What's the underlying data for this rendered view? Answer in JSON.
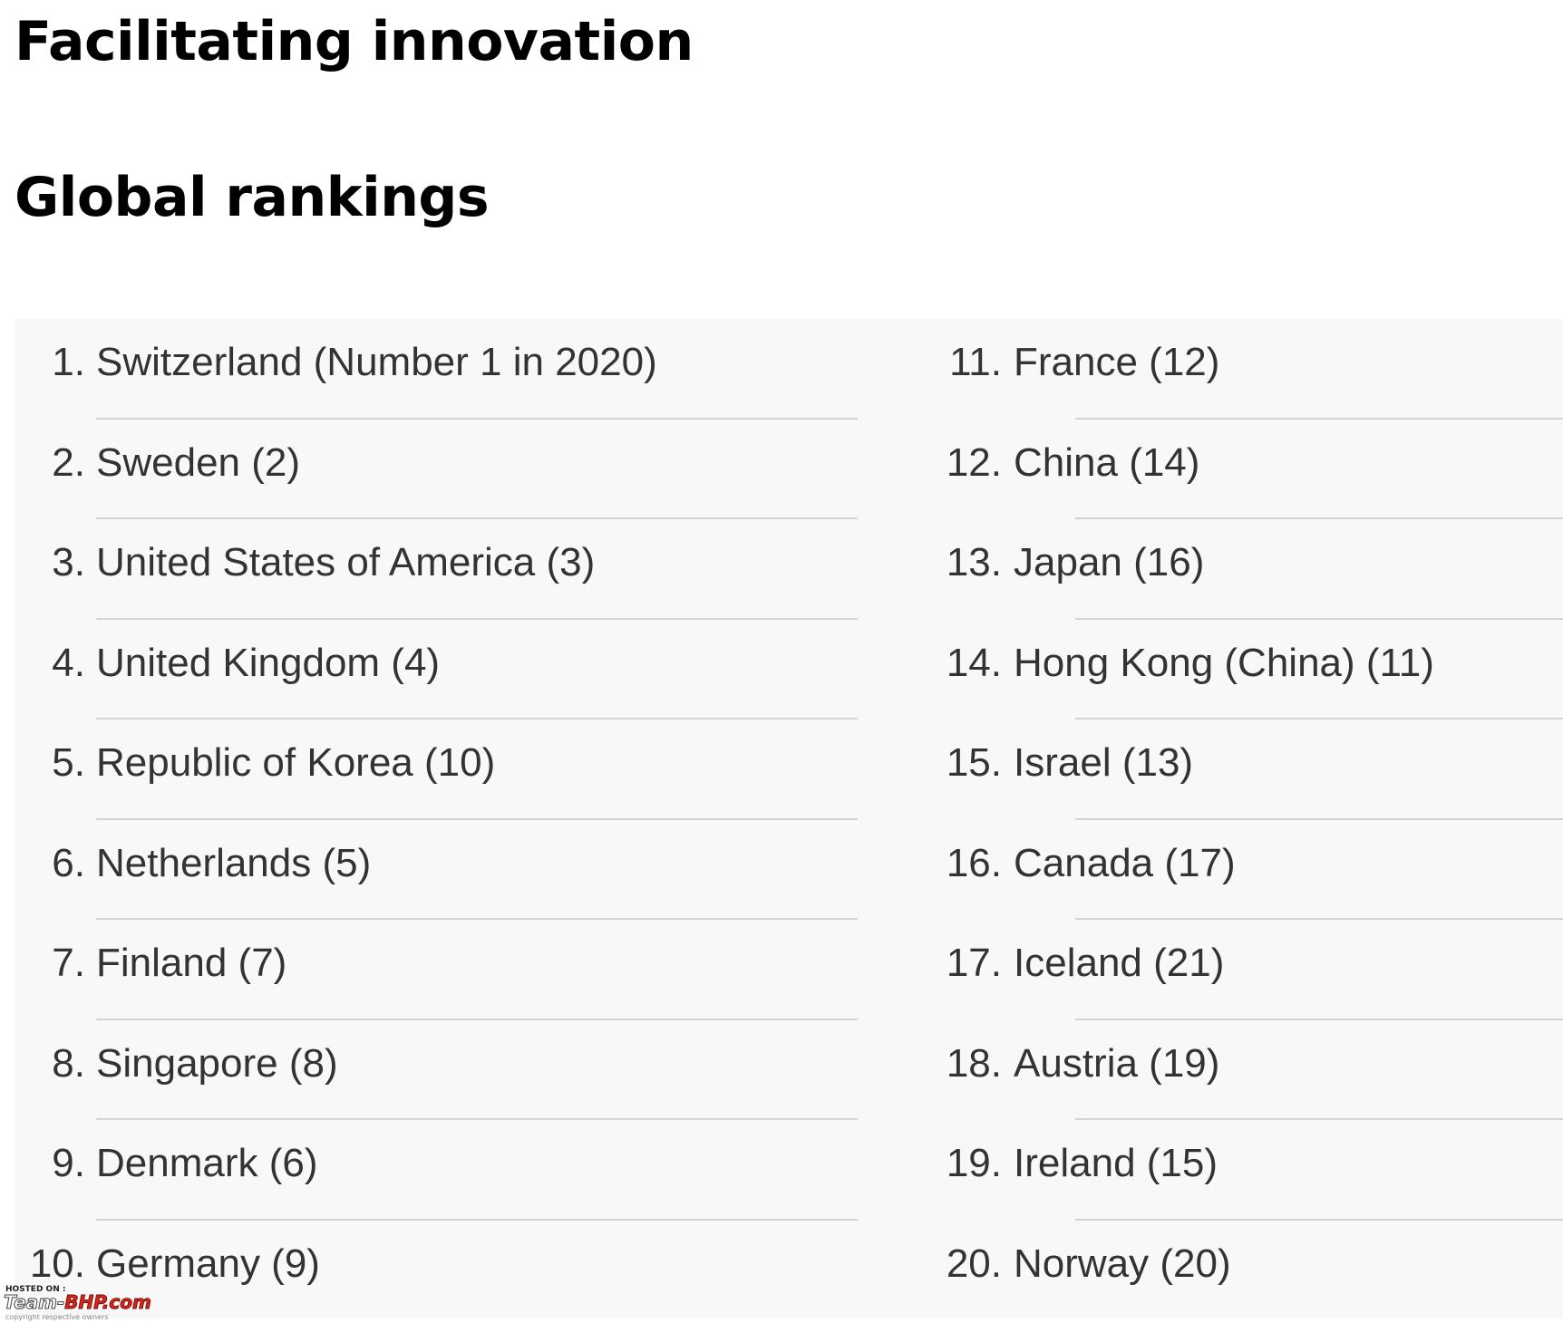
{
  "page": {
    "title": "Facilitating innovation",
    "subtitle": "Global rankings"
  },
  "rankings": {
    "left": [
      {
        "num": "1.",
        "text": "Switzerland (Number 1 in 2020)"
      },
      {
        "num": "2.",
        "text": "Sweden (2)"
      },
      {
        "num": "3.",
        "text": "United States of America (3)"
      },
      {
        "num": "4.",
        "text": "United Kingdom (4)"
      },
      {
        "num": "5.",
        "text": "Republic of Korea (10)"
      },
      {
        "num": "6.",
        "text": "Netherlands (5)"
      },
      {
        "num": "7.",
        "text": "Finland (7)"
      },
      {
        "num": "8.",
        "text": "Singapore (8)"
      },
      {
        "num": "9.",
        "text": "Denmark (6)"
      },
      {
        "num": "10.",
        "text": "Germany (9)"
      }
    ],
    "right": [
      {
        "num": "11.",
        "text": "France (12)"
      },
      {
        "num": "12.",
        "text": "China (14)"
      },
      {
        "num": "13.",
        "text": "Japan (16)"
      },
      {
        "num": "14.",
        "text": "Hong Kong (China) (11)"
      },
      {
        "num": "15.",
        "text": "Israel (13)"
      },
      {
        "num": "16.",
        "text": "Canada (17)"
      },
      {
        "num": "17.",
        "text": "Iceland (21)"
      },
      {
        "num": "18.",
        "text": "Austria (19)"
      },
      {
        "num": "19.",
        "text": "Ireland (15)"
      },
      {
        "num": "20.",
        "text": "Norway (20)"
      }
    ]
  },
  "watermark": {
    "hosted": "HOSTED ON :",
    "brand_a": "Team-",
    "brand_b": "BHP.com",
    "copyright": "copyright respective owners"
  },
  "colors": {
    "panel_background": "#f8f8f8",
    "text": "#333333",
    "divider": "#d4d4d4",
    "watermark_accent": "#d9261c"
  }
}
